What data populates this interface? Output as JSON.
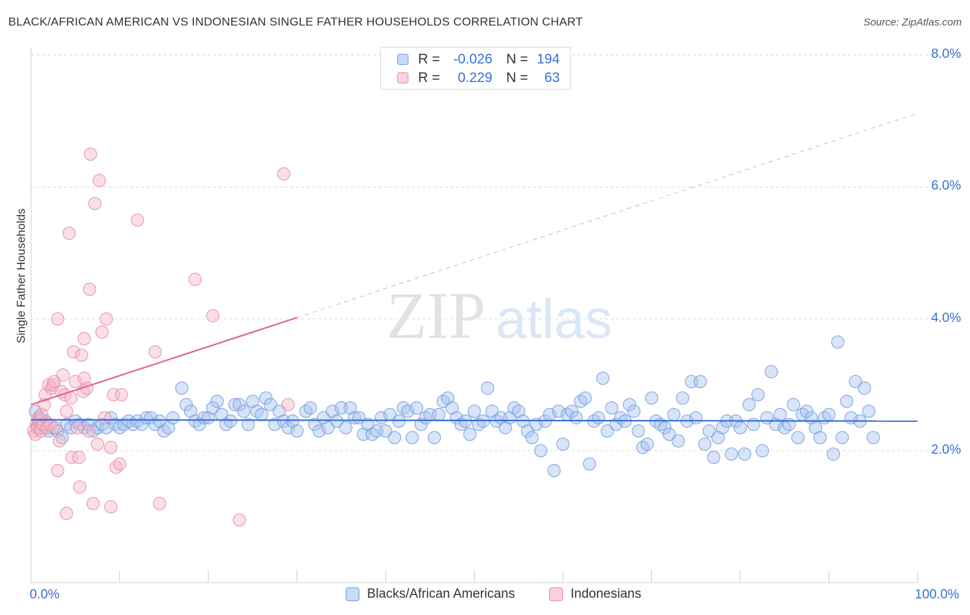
{
  "title": "BLACK/AFRICAN AMERICAN VS INDONESIAN SINGLE FATHER HOUSEHOLDS CORRELATION CHART",
  "source": "Source: ZipAtlas.com",
  "watermark": {
    "zip": "ZIP",
    "atlas": "atlas"
  },
  "legend": {
    "rows": [
      {
        "r_label": "R =",
        "r_value": "-0.026",
        "n_label": "N =",
        "n_value": "194",
        "color": "#a8c4f0"
      },
      {
        "r_label": "R =",
        "r_value": "0.229",
        "n_label": "N =",
        "n_value": "63",
        "color": "#f5b8c8"
      }
    ]
  },
  "bottom_legend": [
    {
      "label": "Blacks/African Americans",
      "color": "#a8c4f0"
    },
    {
      "label": "Indonesians",
      "color": "#f5b8c8"
    }
  ],
  "chart_data": {
    "type": "scatter",
    "title": "BLACK/AFRICAN AMERICAN VS INDONESIAN SINGLE FATHER HOUSEHOLDS CORRELATION CHART",
    "xlabel": "",
    "ylabel": "Single Father Households",
    "xlim": [
      0,
      100
    ],
    "ylim": [
      0,
      8.3
    ],
    "x_tick_labels": [
      "0.0%",
      "100.0%"
    ],
    "y_ticks": [
      2,
      4,
      6,
      8
    ],
    "y_tick_labels": [
      "2.0%",
      "4.0%",
      "6.0%",
      "8.0%"
    ],
    "grid": true,
    "legend_position": "top-center",
    "colors": {
      "blue_fill": "#a8c4f0",
      "blue_stroke": "#6f9be0",
      "blue_line": "#3a6fd8",
      "pink_fill": "#f5b8c8",
      "pink_stroke": "#e68aa5",
      "pink_line": "#e0668f",
      "tick_text": "#3a6fd8",
      "grid": "#d9d9d9"
    },
    "series": [
      {
        "name": "Blacks/African Americans",
        "trend": {
          "x0": 0,
          "y0": 2.47,
          "x1": 100,
          "y1": 2.45
        },
        "points": [
          [
            0.5,
            2.6
          ],
          [
            0.8,
            2.4
          ],
          [
            1,
            2.5
          ],
          [
            1.3,
            2.35
          ],
          [
            1.6,
            2.45
          ],
          [
            2,
            2.3
          ],
          [
            2.5,
            2.35
          ],
          [
            3,
            2.3
          ],
          [
            3.5,
            2.2
          ],
          [
            4,
            2.4
          ],
          [
            4.5,
            2.35
          ],
          [
            5,
            2.45
          ],
          [
            5.5,
            2.4
          ],
          [
            6,
            2.35
          ],
          [
            6.5,
            2.4
          ],
          [
            7,
            2.3
          ],
          [
            7.5,
            2.35
          ],
          [
            8,
            2.4
          ],
          [
            8.5,
            2.35
          ],
          [
            9,
            2.5
          ],
          [
            9.5,
            2.4
          ],
          [
            10,
            2.35
          ],
          [
            10.5,
            2.4
          ],
          [
            11,
            2.45
          ],
          [
            11.5,
            2.4
          ],
          [
            12,
            2.45
          ],
          [
            12.5,
            2.4
          ],
          [
            13,
            2.5
          ],
          [
            13.5,
            2.5
          ],
          [
            14,
            2.4
          ],
          [
            14.5,
            2.45
          ],
          [
            15,
            2.3
          ],
          [
            15.5,
            2.35
          ],
          [
            16,
            2.5
          ],
          [
            17,
            2.95
          ],
          [
            17.5,
            2.7
          ],
          [
            18,
            2.6
          ],
          [
            18.5,
            2.45
          ],
          [
            19,
            2.4
          ],
          [
            19.5,
            2.5
          ],
          [
            20,
            2.5
          ],
          [
            20.5,
            2.65
          ],
          [
            21,
            2.75
          ],
          [
            21.5,
            2.55
          ],
          [
            22,
            2.4
          ],
          [
            22.5,
            2.45
          ],
          [
            23,
            2.7
          ],
          [
            23.5,
            2.7
          ],
          [
            24,
            2.6
          ],
          [
            24.5,
            2.4
          ],
          [
            25,
            2.75
          ],
          [
            25.5,
            2.6
          ],
          [
            26,
            2.55
          ],
          [
            26.5,
            2.8
          ],
          [
            27,
            2.7
          ],
          [
            27.5,
            2.4
          ],
          [
            28,
            2.6
          ],
          [
            28.5,
            2.45
          ],
          [
            29,
            2.35
          ],
          [
            29.5,
            2.45
          ],
          [
            30,
            2.3
          ],
          [
            31,
            2.6
          ],
          [
            31.5,
            2.65
          ],
          [
            32,
            2.4
          ],
          [
            32.5,
            2.3
          ],
          [
            33,
            2.5
          ],
          [
            33.5,
            2.35
          ],
          [
            34,
            2.6
          ],
          [
            34.5,
            2.45
          ],
          [
            35,
            2.65
          ],
          [
            35.5,
            2.35
          ],
          [
            36,
            2.65
          ],
          [
            36.5,
            2.5
          ],
          [
            37,
            2.5
          ],
          [
            37.5,
            2.25
          ],
          [
            38,
            2.4
          ],
          [
            38.5,
            2.25
          ],
          [
            39,
            2.3
          ],
          [
            39.5,
            2.5
          ],
          [
            40,
            2.3
          ],
          [
            40.5,
            2.55
          ],
          [
            41,
            2.2
          ],
          [
            41.5,
            2.45
          ],
          [
            42,
            2.65
          ],
          [
            42.5,
            2.6
          ],
          [
            43,
            2.2
          ],
          [
            43.5,
            2.65
          ],
          [
            44,
            2.4
          ],
          [
            44.5,
            2.5
          ],
          [
            45,
            2.55
          ],
          [
            45.5,
            2.2
          ],
          [
            46,
            2.55
          ],
          [
            46.5,
            2.75
          ],
          [
            47,
            2.8
          ],
          [
            47.5,
            2.65
          ],
          [
            48,
            2.5
          ],
          [
            48.5,
            2.4
          ],
          [
            49,
            2.45
          ],
          [
            49.5,
            2.25
          ],
          [
            50,
            2.6
          ],
          [
            50.5,
            2.4
          ],
          [
            51,
            2.45
          ],
          [
            51.5,
            2.95
          ],
          [
            52,
            2.6
          ],
          [
            52.5,
            2.45
          ],
          [
            53,
            2.5
          ],
          [
            53.5,
            2.35
          ],
          [
            54,
            2.5
          ],
          [
            54.5,
            2.65
          ],
          [
            55,
            2.6
          ],
          [
            55.5,
            2.45
          ],
          [
            56,
            2.3
          ],
          [
            56.5,
            2.2
          ],
          [
            57,
            2.4
          ],
          [
            57.5,
            2.0
          ],
          [
            58,
            2.45
          ],
          [
            58.5,
            2.55
          ],
          [
            59,
            1.7
          ],
          [
            59.5,
            2.6
          ],
          [
            60,
            2.1
          ],
          [
            60.5,
            2.55
          ],
          [
            61,
            2.6
          ],
          [
            61.5,
            2.5
          ],
          [
            62,
            2.75
          ],
          [
            62.5,
            2.8
          ],
          [
            63,
            1.8
          ],
          [
            63.5,
            2.45
          ],
          [
            64,
            2.5
          ],
          [
            64.5,
            3.1
          ],
          [
            65,
            2.3
          ],
          [
            65.5,
            2.65
          ],
          [
            66,
            2.4
          ],
          [
            66.5,
            2.5
          ],
          [
            67,
            2.45
          ],
          [
            67.5,
            2.7
          ],
          [
            68,
            2.6
          ],
          [
            68.5,
            2.3
          ],
          [
            69,
            2.05
          ],
          [
            69.5,
            2.1
          ],
          [
            70,
            2.8
          ],
          [
            70.5,
            2.45
          ],
          [
            71,
            2.4
          ],
          [
            71.5,
            2.35
          ],
          [
            72,
            2.25
          ],
          [
            72.5,
            2.55
          ],
          [
            73,
            2.15
          ],
          [
            73.5,
            2.8
          ],
          [
            74,
            2.45
          ],
          [
            74.5,
            3.05
          ],
          [
            75,
            2.5
          ],
          [
            75.5,
            3.05
          ],
          [
            76,
            2.1
          ],
          [
            76.5,
            2.3
          ],
          [
            77,
            1.9
          ],
          [
            77.5,
            2.2
          ],
          [
            78,
            2.35
          ],
          [
            78.5,
            2.45
          ],
          [
            79,
            1.95
          ],
          [
            79.5,
            2.45
          ],
          [
            80,
            2.35
          ],
          [
            80.5,
            1.95
          ],
          [
            81,
            2.7
          ],
          [
            81.5,
            2.4
          ],
          [
            82,
            2.85
          ],
          [
            82.5,
            2.0
          ],
          [
            83,
            2.5
          ],
          [
            83.5,
            3.2
          ],
          [
            84,
            2.4
          ],
          [
            84.5,
            2.55
          ],
          [
            85,
            2.35
          ],
          [
            85.5,
            2.4
          ],
          [
            86,
            2.7
          ],
          [
            86.5,
            2.2
          ],
          [
            87,
            2.55
          ],
          [
            87.5,
            2.6
          ],
          [
            88,
            2.5
          ],
          [
            88.5,
            2.35
          ],
          [
            89,
            2.2
          ],
          [
            89.5,
            2.5
          ],
          [
            90,
            2.55
          ],
          [
            90.5,
            1.95
          ],
          [
            91,
            3.65
          ],
          [
            91.5,
            2.2
          ],
          [
            92,
            2.75
          ],
          [
            92.5,
            2.5
          ],
          [
            93,
            3.05
          ],
          [
            93.5,
            2.45
          ],
          [
            94,
            2.95
          ],
          [
            94.5,
            2.6
          ],
          [
            95,
            2.2
          ]
        ]
      },
      {
        "name": "Indonesians",
        "trend": {
          "x0": 0,
          "y0": 2.7,
          "x1": 30,
          "y1": 4.02,
          "dashed_to": {
            "x": 100,
            "y": 7.12
          }
        },
        "points": [
          [
            0.3,
            2.3
          ],
          [
            0.5,
            2.25
          ],
          [
            0.6,
            2.4
          ],
          [
            0.7,
            2.35
          ],
          [
            0.8,
            2.5
          ],
          [
            0.9,
            2.45
          ],
          [
            1,
            2.35
          ],
          [
            1.1,
            2.3
          ],
          [
            1.2,
            2.55
          ],
          [
            1.3,
            2.4
          ],
          [
            1.5,
            2.7
          ],
          [
            1.6,
            2.85
          ],
          [
            1.8,
            2.35
          ],
          [
            2,
            3.0
          ],
          [
            2.1,
            2.4
          ],
          [
            2.3,
            2.95
          ],
          [
            2.5,
            3.0
          ],
          [
            2.6,
            3.05
          ],
          [
            2.8,
            2.35
          ],
          [
            3,
            1.7
          ],
          [
            3,
            4.0
          ],
          [
            3.2,
            2.15
          ],
          [
            3.4,
            2.9
          ],
          [
            3.6,
            3.15
          ],
          [
            3.8,
            2.85
          ],
          [
            4,
            2.6
          ],
          [
            4,
            1.05
          ],
          [
            4.3,
            5.3
          ],
          [
            4.5,
            2.8
          ],
          [
            4.6,
            1.9
          ],
          [
            4.8,
            3.5
          ],
          [
            5,
            3.05
          ],
          [
            5.2,
            2.35
          ],
          [
            5.4,
            1.9
          ],
          [
            5.5,
            1.45
          ],
          [
            5.7,
            3.45
          ],
          [
            5.9,
            2.9
          ],
          [
            6,
            3.1
          ],
          [
            6,
            3.7
          ],
          [
            6.3,
            2.95
          ],
          [
            6.5,
            2.3
          ],
          [
            6.6,
            4.45
          ],
          [
            6.7,
            6.5
          ],
          [
            7,
            1.2
          ],
          [
            7.2,
            5.75
          ],
          [
            7.5,
            2.1
          ],
          [
            7.7,
            6.1
          ],
          [
            8,
            3.8
          ],
          [
            8.3,
            2.5
          ],
          [
            8.5,
            4.0
          ],
          [
            9,
            1.15
          ],
          [
            9,
            2.05
          ],
          [
            9.3,
            2.85
          ],
          [
            9.6,
            1.75
          ],
          [
            10,
            1.8
          ],
          [
            10.2,
            2.85
          ],
          [
            12,
            5.5
          ],
          [
            14,
            3.5
          ],
          [
            14.5,
            1.2
          ],
          [
            18.5,
            4.6
          ],
          [
            20.5,
            4.05
          ],
          [
            23.5,
            0.95
          ],
          [
            28.5,
            6.2
          ],
          [
            29,
            2.7
          ]
        ]
      }
    ]
  }
}
